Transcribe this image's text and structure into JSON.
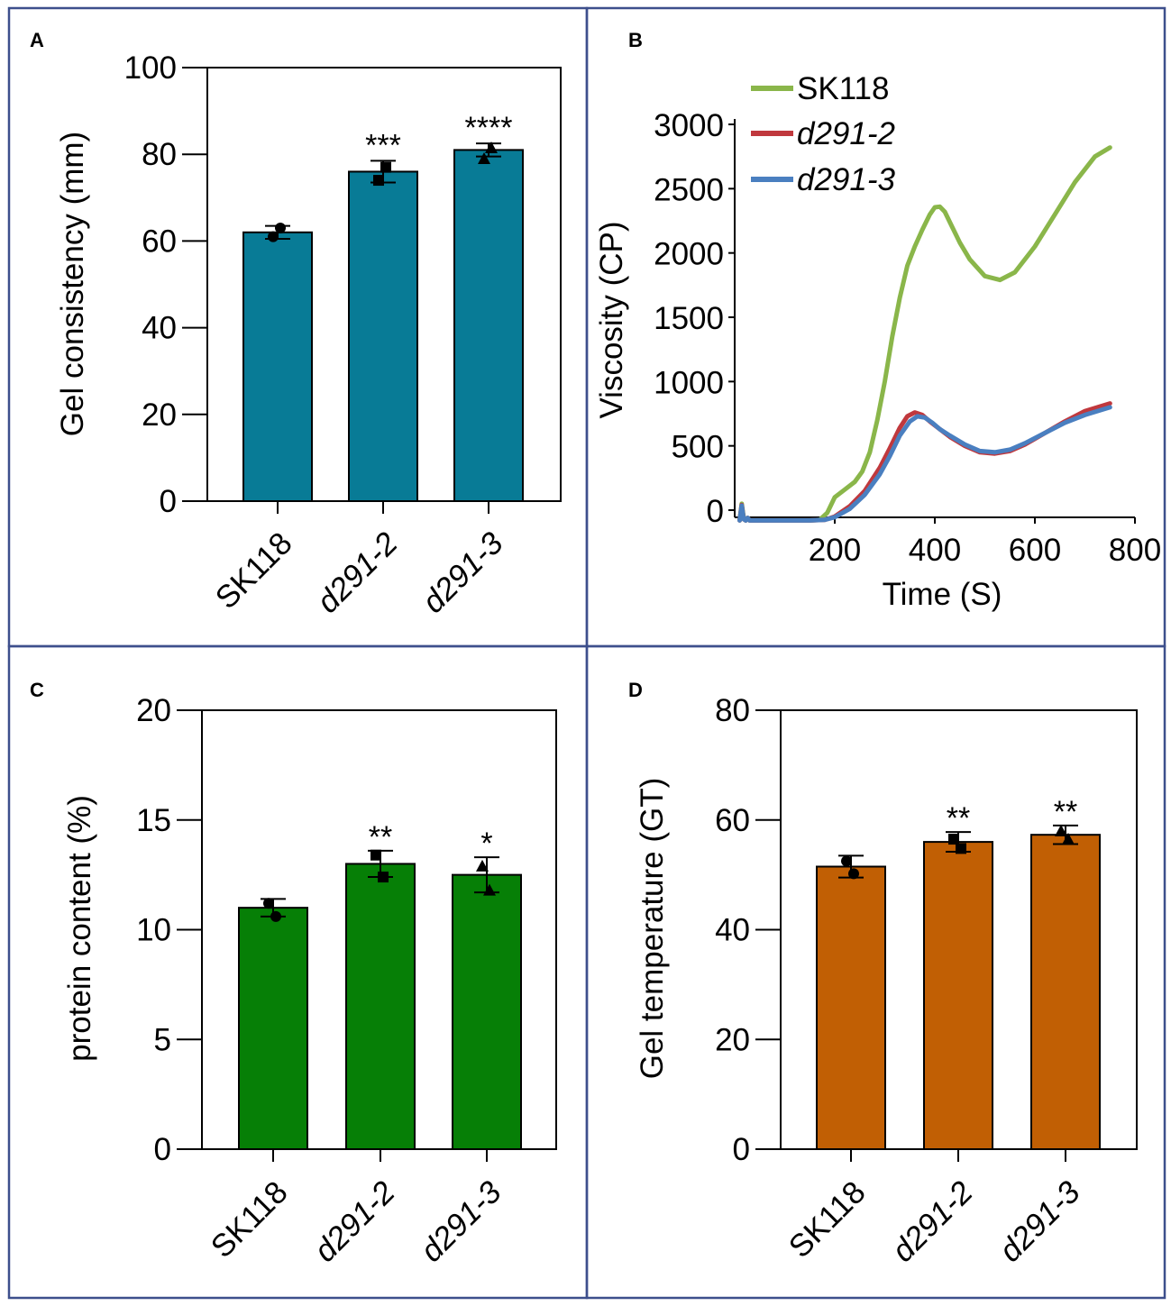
{
  "chart_data": [
    {
      "panel": "A",
      "type": "bar",
      "color": "#087b96",
      "categories": [
        "SK118",
        "d291-2",
        "d291-3"
      ],
      "values": [
        62,
        76,
        81
      ],
      "errors": [
        1.5,
        2.5,
        1.5
      ],
      "points": [
        [
          61,
          63
        ],
        [
          74,
          77
        ],
        [
          79,
          81.5
        ]
      ],
      "markers": [
        "circle",
        "square",
        "triangle"
      ],
      "significance": [
        "",
        "***",
        "****"
      ],
      "ylabel": "Gel consistency (mm)",
      "ylim": [
        0,
        100
      ],
      "yticks": [
        0,
        20,
        40,
        60,
        80,
        100
      ],
      "grid": false
    },
    {
      "panel": "B",
      "type": "line",
      "xlabel": "Time (S)",
      "ylabel": "Viscosity (CP)",
      "xlim": [
        0,
        800
      ],
      "ylim": [
        -100,
        3000
      ],
      "xticks": [
        200,
        400,
        600,
        800
      ],
      "yticks": [
        0,
        500,
        1000,
        1500,
        2000,
        2500,
        3000
      ],
      "legend_position": "top-left",
      "series": [
        {
          "name": "SK118",
          "color": "#8ab64a",
          "x": [
            10,
            14,
            18,
            22,
            26,
            30,
            50,
            100,
            150,
            170,
            185,
            200,
            220,
            240,
            255,
            270,
            285,
            300,
            315,
            330,
            345,
            360,
            375,
            390,
            400,
            410,
            420,
            435,
            450,
            470,
            500,
            530,
            560,
            600,
            640,
            680,
            720,
            750
          ],
          "y": [
            -80,
            50,
            -60,
            -80,
            -60,
            -80,
            -80,
            -80,
            -80,
            -75,
            -20,
            100,
            160,
            220,
            300,
            450,
            700,
            1000,
            1350,
            1650,
            1900,
            2050,
            2180,
            2300,
            2355,
            2360,
            2320,
            2200,
            2080,
            1950,
            1820,
            1790,
            1850,
            2050,
            2300,
            2550,
            2750,
            2820
          ]
        },
        {
          "name": "d291-2",
          "color": "#c0383d",
          "x": [
            10,
            14,
            18,
            22,
            26,
            30,
            50,
            100,
            150,
            180,
            200,
            230,
            260,
            290,
            310,
            330,
            345,
            360,
            375,
            390,
            410,
            430,
            460,
            490,
            520,
            550,
            580,
            620,
            660,
            700,
            750
          ],
          "y": [
            -80,
            40,
            -70,
            -80,
            -60,
            -80,
            -80,
            -80,
            -80,
            -75,
            -50,
            30,
            150,
            330,
            480,
            640,
            730,
            760,
            740,
            690,
            630,
            570,
            500,
            450,
            440,
            460,
            510,
            600,
            690,
            770,
            830
          ]
        },
        {
          "name": "d291-3",
          "color": "#4a7fc0",
          "x": [
            10,
            14,
            18,
            22,
            26,
            30,
            50,
            100,
            150,
            180,
            200,
            230,
            260,
            290,
            310,
            330,
            350,
            365,
            380,
            395,
            410,
            430,
            460,
            490,
            520,
            550,
            580,
            620,
            660,
            700,
            750
          ],
          "y": [
            -80,
            35,
            -70,
            -80,
            -60,
            -80,
            -80,
            -80,
            -80,
            -75,
            -55,
            10,
            120,
            280,
            420,
            580,
            690,
            730,
            720,
            680,
            630,
            580,
            510,
            460,
            450,
            470,
            520,
            600,
            680,
            740,
            800
          ]
        }
      ],
      "grid": false
    },
    {
      "panel": "C",
      "type": "bar",
      "color": "#067f06",
      "categories": [
        "SK118",
        "d291-2",
        "d291-3"
      ],
      "values": [
        11.0,
        13.0,
        12.5
      ],
      "errors": [
        0.4,
        0.6,
        0.8
      ],
      "points": [
        [
          11.2,
          10.6
        ],
        [
          13.4,
          12.4
        ],
        [
          12.9,
          11.8
        ]
      ],
      "markers": [
        "circle",
        "square",
        "triangle"
      ],
      "significance": [
        "",
        "**",
        "*"
      ],
      "ylabel": "protein content (%)",
      "ylim": [
        0,
        20
      ],
      "yticks": [
        0,
        5,
        10,
        15,
        20
      ],
      "grid": false
    },
    {
      "panel": "D",
      "type": "bar",
      "color": "#c15f04",
      "categories": [
        "SK118",
        "d291-2",
        "d291-3"
      ],
      "values": [
        51.5,
        56.0,
        57.3
      ],
      "errors": [
        2.0,
        1.8,
        1.7
      ],
      "points": [
        [
          52.5,
          50.2
        ],
        [
          56.5,
          54.8
        ],
        [
          58.0,
          56.5
        ]
      ],
      "markers": [
        "circle",
        "square",
        "triangle"
      ],
      "significance": [
        "",
        "**",
        "**"
      ],
      "ylabel": "Gel temperature (GT)",
      "ylim": [
        0,
        80
      ],
      "yticks": [
        0,
        20,
        40,
        60,
        80
      ],
      "grid": false
    }
  ]
}
